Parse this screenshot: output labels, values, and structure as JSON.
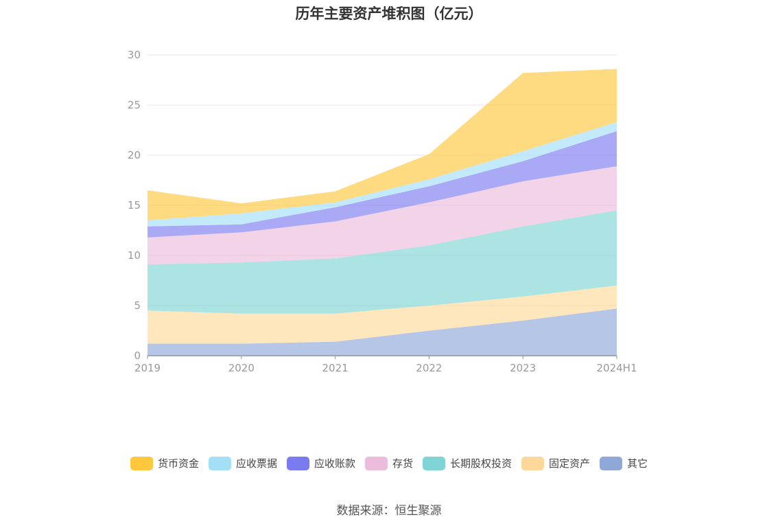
{
  "chart_data": {
    "type": "area",
    "stacked": true,
    "title": "历年主要资产堆积图（亿元）",
    "categories": [
      "2019",
      "2020",
      "2021",
      "2022",
      "2023",
      "2024H1"
    ],
    "yticks": [
      "0",
      "5",
      "10",
      "15",
      "20",
      "25",
      "30"
    ],
    "ylim": [
      0,
      30
    ],
    "grid": true,
    "legend_position": "bottom",
    "series": [
      {
        "name": "其它",
        "color": "#8fa8d8",
        "values": [
          1.2,
          1.2,
          1.4,
          2.5,
          3.5,
          4.7
        ]
      },
      {
        "name": "固定资产",
        "color": "#fdd89a",
        "values": [
          3.3,
          3.0,
          2.8,
          2.5,
          2.4,
          2.3
        ]
      },
      {
        "name": "长期股权投资",
        "color": "#7fd5d5",
        "values": [
          4.6,
          5.1,
          5.5,
          6.0,
          7.0,
          7.5
        ]
      },
      {
        "name": "存货",
        "color": "#ebbcdc",
        "values": [
          2.7,
          3.0,
          3.7,
          4.3,
          4.5,
          4.4
        ]
      },
      {
        "name": "应收账款",
        "color": "#7b7bf0",
        "values": [
          1.1,
          0.8,
          1.4,
          1.6,
          2.0,
          3.5
        ]
      },
      {
        "name": "应收票据",
        "color": "#a3dff7",
        "values": [
          0.6,
          1.1,
          0.5,
          0.7,
          1.0,
          0.9
        ]
      },
      {
        "name": "货币资金",
        "color": "#fdc73e",
        "values": [
          3.0,
          1.0,
          1.1,
          2.5,
          7.8,
          5.3
        ]
      }
    ],
    "legend_order": [
      "货币资金",
      "应收票据",
      "应收账款",
      "存货",
      "长期股权投资",
      "固定资产",
      "其它"
    ]
  },
  "source_text": "数据来源：恒生聚源"
}
